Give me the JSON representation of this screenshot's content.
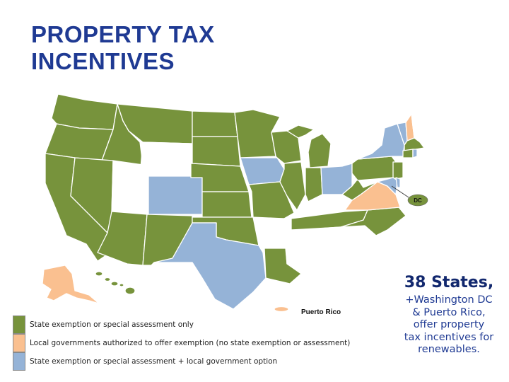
{
  "title": {
    "line1": "PROPERTY TAX",
    "line2": "INCENTIVES"
  },
  "colors": {
    "state_only": "#77933c",
    "local_only": "#fac090",
    "state_and_local": "#95b3d7",
    "none": "#ffffff",
    "border": "#ffffff",
    "title": "#1f3a93"
  },
  "map": {
    "puerto_rico_label": "Puerto Rico",
    "dc_label": "DC"
  },
  "legend": [
    {
      "key": "state_only",
      "label": "State exemption or special assessment only",
      "color": "#77933c"
    },
    {
      "key": "local_only",
      "label": "Local governments authorized to offer exemption (no state exemption or assessment)",
      "color": "#fac090"
    },
    {
      "key": "state_and_local",
      "label": "State exemption or special assessment + local government option",
      "color": "#95b3d7"
    }
  ],
  "callout": {
    "headline": "38 States,",
    "line1": "+Washington DC",
    "line2": "& Puerto Rico,",
    "line3": "offer property",
    "line4": "tax incentives for",
    "line5": "renewables."
  }
}
